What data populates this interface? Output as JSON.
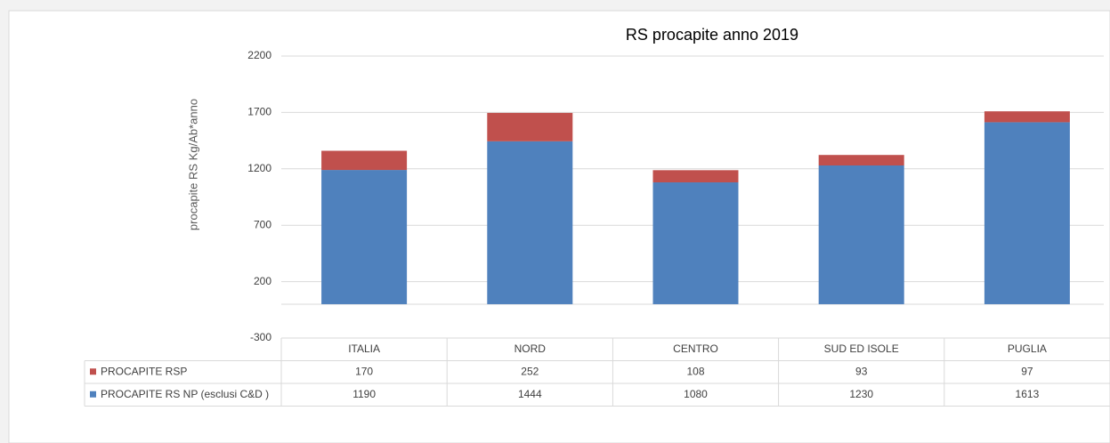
{
  "chart_data": {
    "type": "bar",
    "stacked": true,
    "title": "RS procapite anno 2019",
    "y_label": "procapite  RS Kg/Ab*anno",
    "categories": [
      "ITALIA",
      "NORD",
      "CENTRO",
      "SUD ED ISOLE",
      "PUGLIA"
    ],
    "series": [
      {
        "name": "PROCAPITE  RSP",
        "color": "#c0504d",
        "values": [
          170,
          252,
          108,
          93,
          97
        ]
      },
      {
        "name": "PROCAPITE RS NP (esclusi C&D )",
        "color": "#4f81bd",
        "values": [
          1190,
          1444,
          1080,
          1230,
          1613
        ]
      }
    ],
    "ylim": [
      -300,
      2200
    ],
    "yticks": [
      -300,
      200,
      700,
      1200,
      1700,
      2200
    ],
    "grid": true,
    "data_table": true
  }
}
